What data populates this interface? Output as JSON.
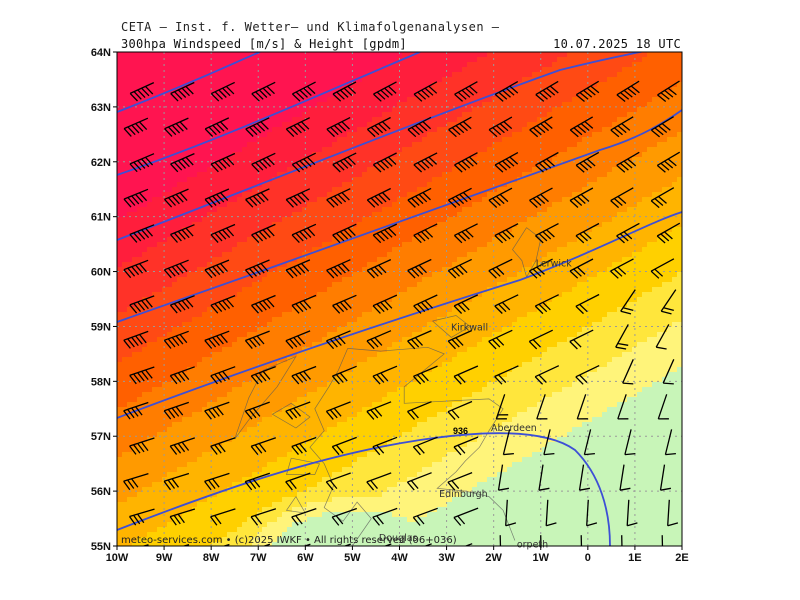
{
  "header": {
    "line1": "CETA — Inst. f. Wetter— und Klimafolgenanalysen —",
    "title": "300hpa Windspeed [m/s] & Height [gpdm]",
    "datetime": "10.07.2025  18 UTC"
  },
  "footer": {
    "credit": "meteo-services.com • (c)2025 IWKF • All rights reserved (06+036)"
  },
  "map": {
    "lon_range": [
      -10,
      2
    ],
    "lat_range": [
      55,
      64
    ],
    "x_ticks": [
      "10W",
      "9W",
      "8W",
      "7W",
      "6W",
      "5W",
      "4W",
      "3W",
      "2W",
      "1W",
      "0",
      "1E",
      "2E"
    ],
    "y_ticks": [
      "55N",
      "56N",
      "57N",
      "58N",
      "59N",
      "60N",
      "61N",
      "62N",
      "63N",
      "64N"
    ],
    "grid": "dotted",
    "contour_label": "936",
    "cities": [
      {
        "name": "Lerwick",
        "lon": -1.15,
        "lat": 60.15
      },
      {
        "name": "Kirkwall",
        "lon": -2.95,
        "lat": 58.98
      },
      {
        "name": "Aberdeen",
        "lon": -2.1,
        "lat": 57.15
      },
      {
        "name": "Edinburgh",
        "lon": -3.2,
        "lat": 55.95
      },
      {
        "name": "Douglas",
        "lon": -4.48,
        "lat": 55.15
      },
      {
        "name": "orpeth",
        "lon": -1.55,
        "lat": 55.03
      }
    ],
    "colors": {
      "grid": "#9a9a9a",
      "contour": "#3d4fd6",
      "barb": "#000000",
      "coast": "#5a5a5a",
      "speed_scale": [
        "#c8f5b8",
        "#fff47a",
        "#ffe63c",
        "#ffd000",
        "#ffb400",
        "#ff9a00",
        "#ff7d00",
        "#ff6000",
        "#ff4a14",
        "#ff3228",
        "#ff1e3c",
        "#ff1450"
      ]
    }
  }
}
